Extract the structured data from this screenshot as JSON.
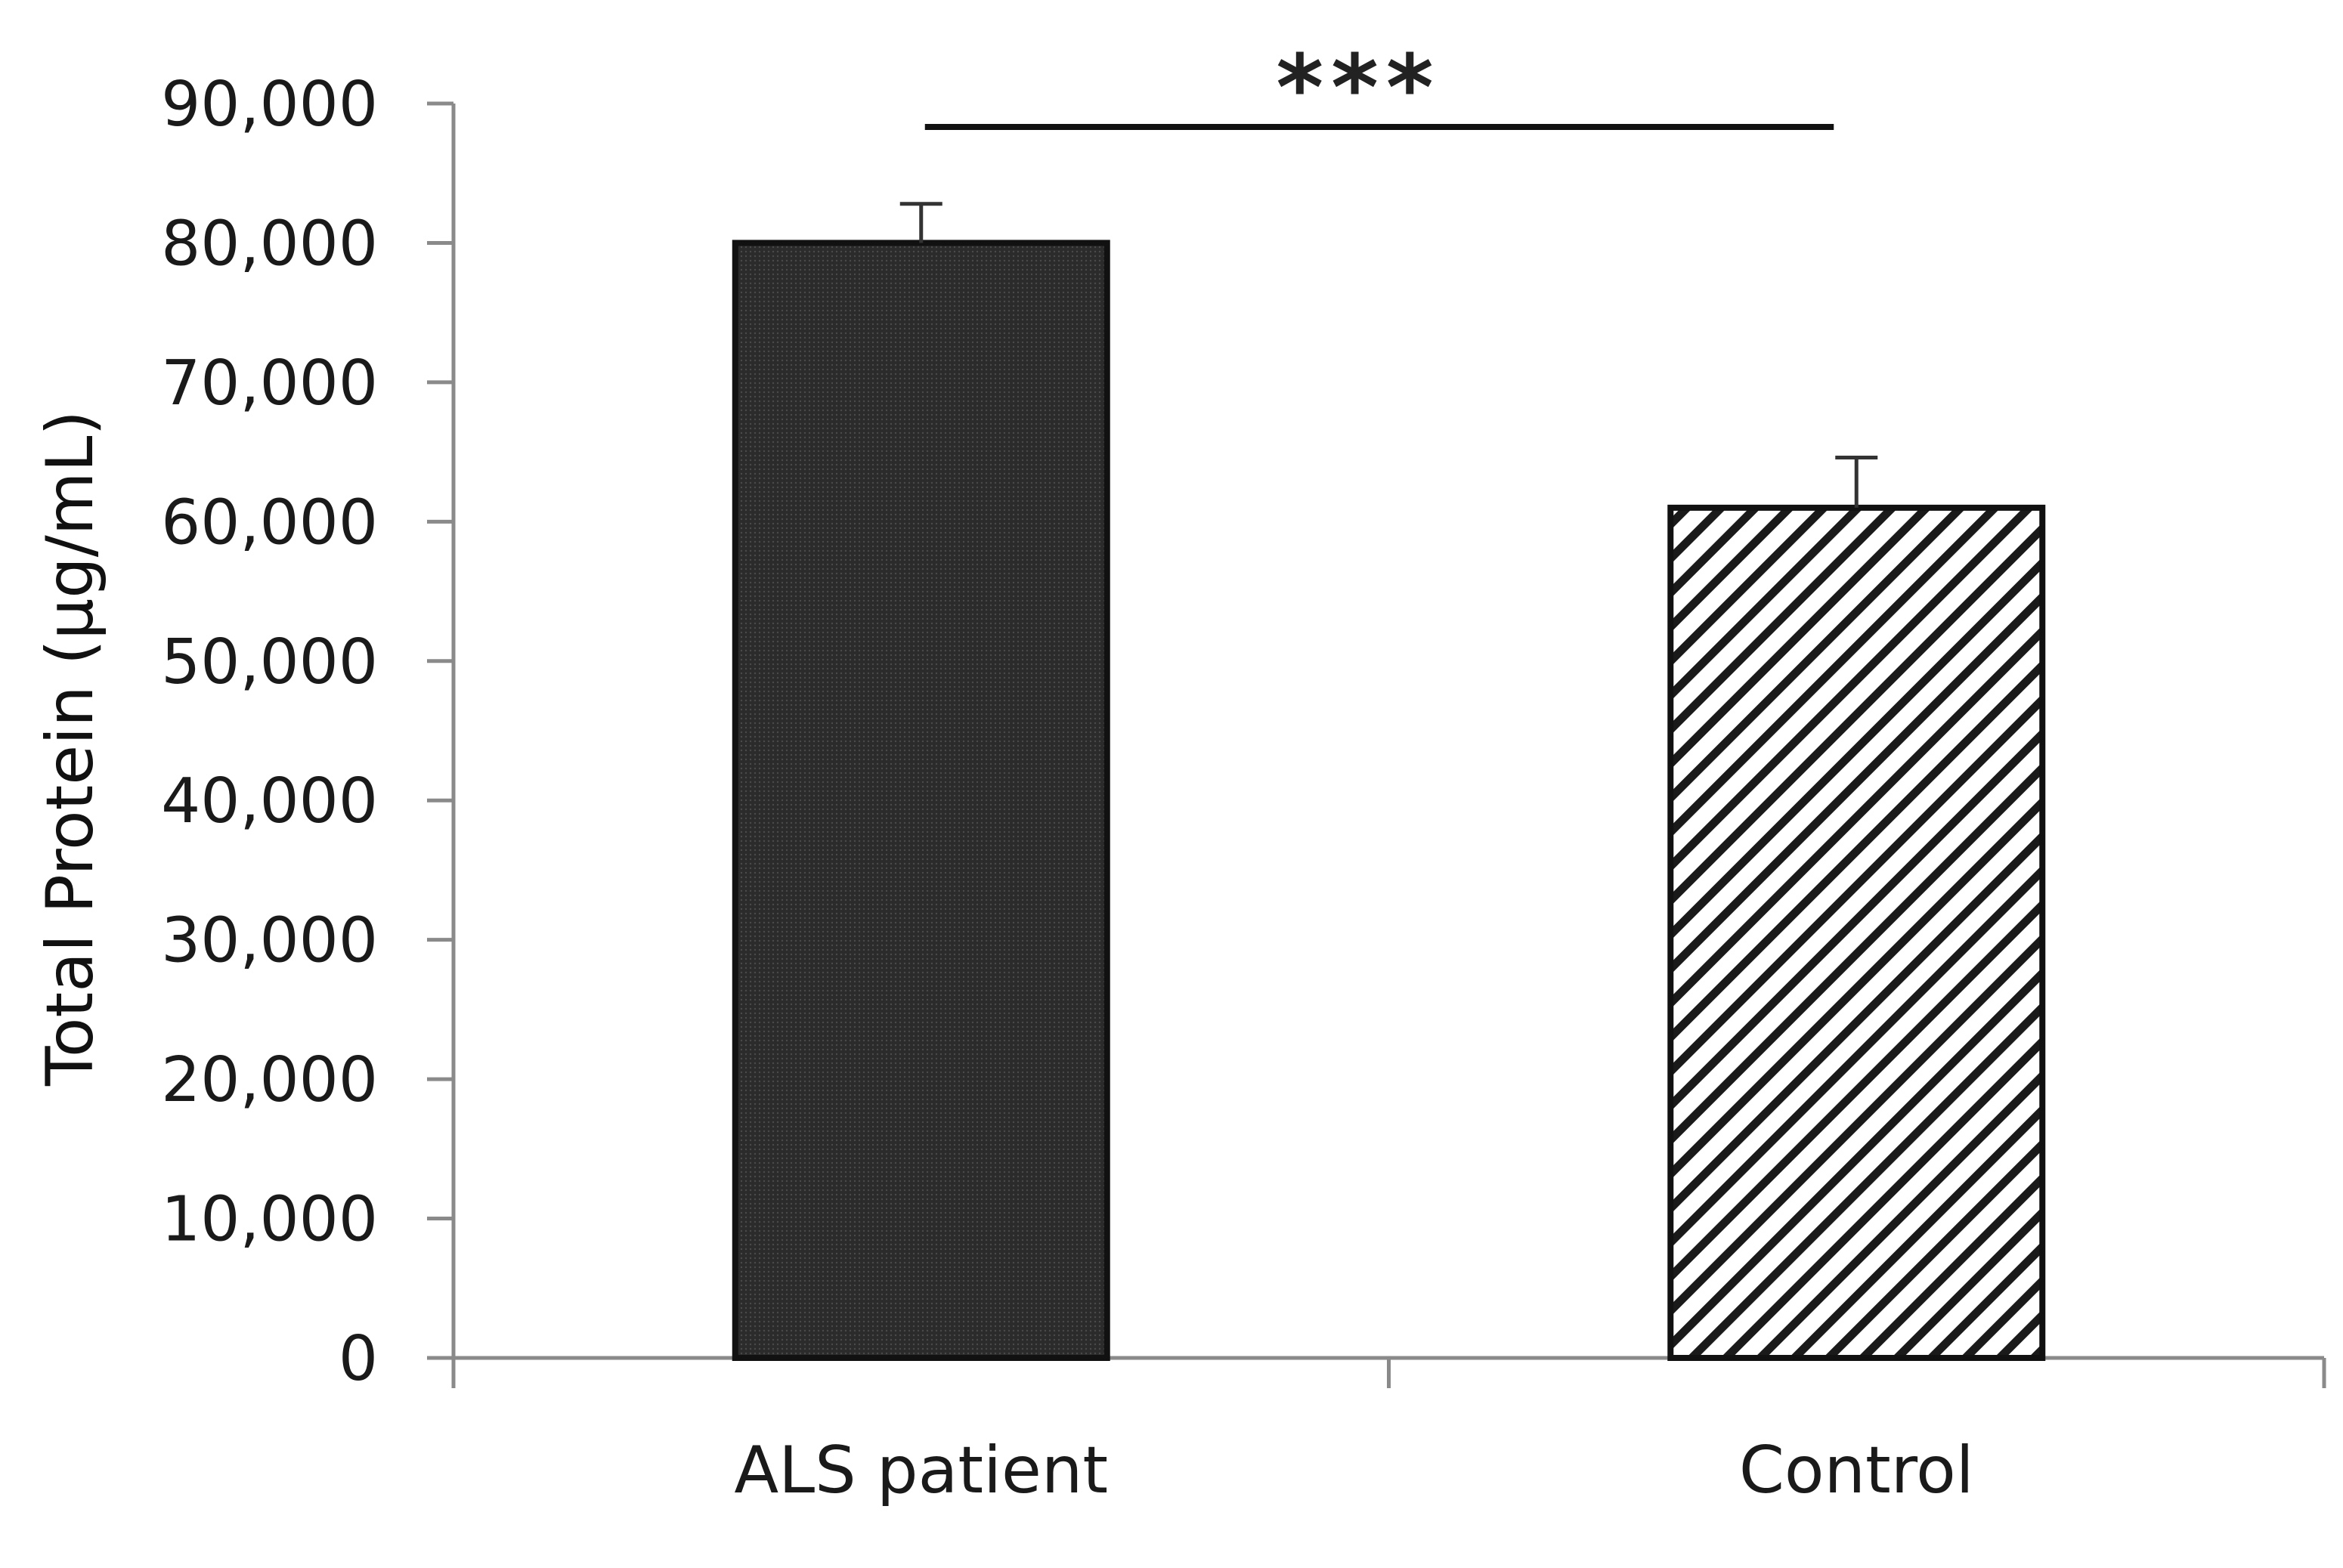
{
  "chart_data": {
    "type": "bar",
    "categories": [
      "ALS patient",
      "Control"
    ],
    "values": [
      80000,
      61000
    ],
    "error_upper": [
      82800,
      64600
    ],
    "fills": [
      "dense-dark",
      "diagonal-hatch"
    ],
    "ylabel": "Total Protein (μg/mL)",
    "xlabel": "",
    "title": "",
    "ylim": [
      0,
      90000
    ],
    "yticks": [
      0,
      10000,
      20000,
      30000,
      40000,
      50000,
      60000,
      70000,
      80000,
      90000
    ],
    "ytick_labels": [
      "0",
      "10,000",
      "20,000",
      "30,000",
      "40,000",
      "50,000",
      "60,000",
      "70,000",
      "80,000",
      "90,000"
    ],
    "significance": {
      "label": "***",
      "between": [
        "ALS patient",
        "Control"
      ]
    },
    "grid": false,
    "legend": "none",
    "colors": {
      "axis": "#8a8a8a",
      "bar_dark": "#2a2a2a",
      "bar_stroke": "#111111",
      "hatch": "#1a1a1a"
    }
  }
}
